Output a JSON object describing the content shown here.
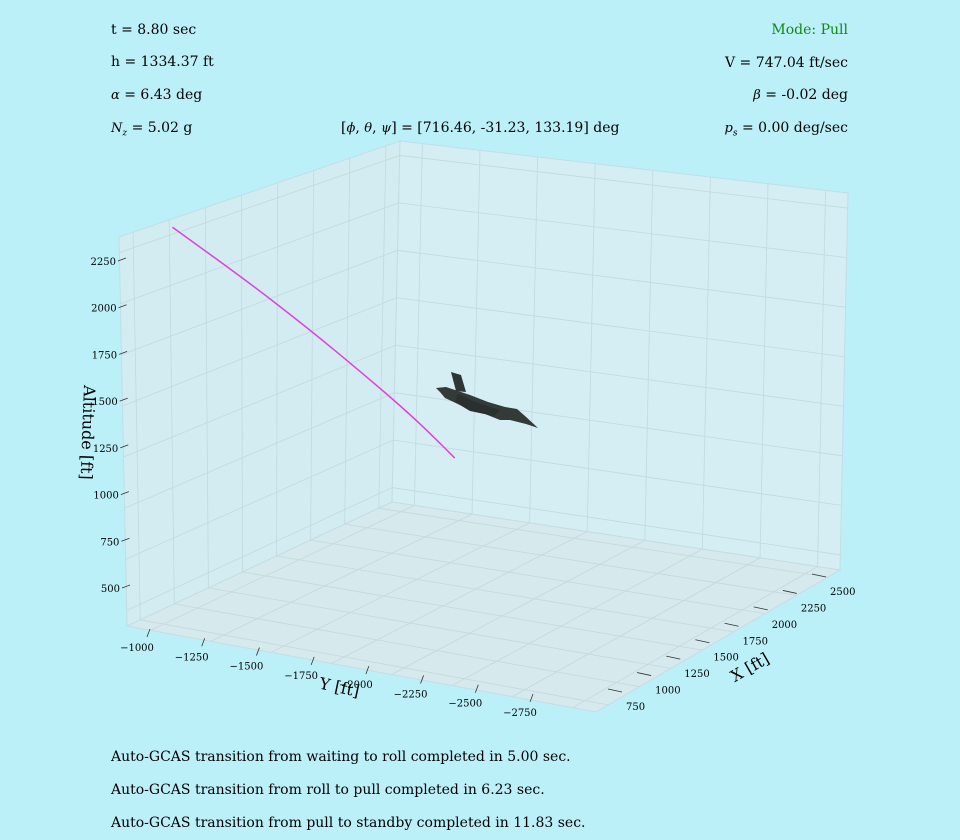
{
  "hud": {
    "time": "t = 8.80 sec",
    "altitude": "h = 1334.37 ft",
    "alpha_value": "= 6.43 deg",
    "nz_value": "= 5.02 g",
    "mode": "Mode: Pull",
    "speed": "V = 747.04 ft/sec",
    "beta_value": "= -0.02 deg",
    "ps_value": "= 0.00 deg/sec",
    "euler_value": "= [716.46, -31.23, 133.19] deg",
    "mode_color": "#118811"
  },
  "status_messages": [
    "Auto-GCAS transition from waiting to roll completed in 5.00 sec.",
    "Auto-GCAS transition from roll to pull completed in 6.23 sec.",
    "Auto-GCAS transition from pull to standby completed in 11.83 sec."
  ],
  "chart_data": {
    "type": "line3d",
    "xlabel": "X [ft]",
    "ylabel": "Y [ft]",
    "zlabel": "Altitude [ft]",
    "xticks": [
      "750",
      "1000",
      "1250",
      "1500",
      "1750",
      "2000",
      "2250",
      "2500"
    ],
    "yticks": [
      "−1000",
      "−1250",
      "−1500",
      "−1750",
      "−2000",
      "−2250",
      "−2500",
      "−2750"
    ],
    "zticks": [
      "500",
      "750",
      "1000",
      "1250",
      "1500",
      "1750",
      "2000",
      "2250"
    ],
    "series": [
      {
        "color": "#e040e0",
        "points": [
          {
            "x": 1650,
            "y": -1100,
            "z": 2360
          },
          {
            "x": 1690,
            "y": -1260,
            "z": 2150
          },
          {
            "x": 1720,
            "y": -1400,
            "z": 1960
          },
          {
            "x": 1735,
            "y": -1530,
            "z": 1790
          },
          {
            "x": 1740,
            "y": -1650,
            "z": 1640
          },
          {
            "x": 1735,
            "y": -1740,
            "z": 1530
          },
          {
            "x": 1725,
            "y": -1810,
            "z": 1450
          }
        ]
      }
    ],
    "aircraft_color": "#333a38",
    "pane_color": "#d4eef3",
    "grid": true
  }
}
